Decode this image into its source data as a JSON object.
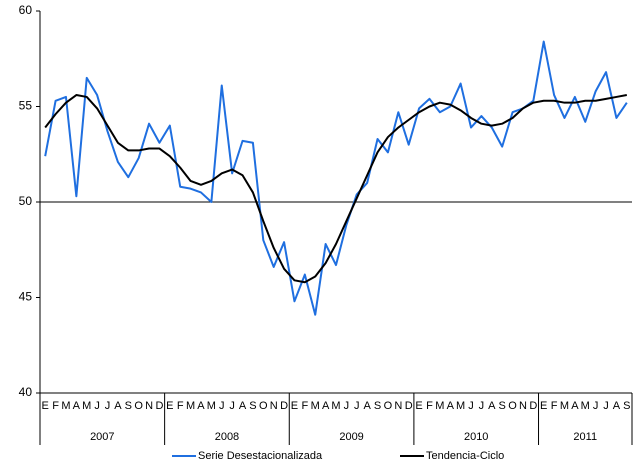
{
  "chart_data": {
    "type": "line",
    "categories": [
      "E",
      "F",
      "M",
      "A",
      "M",
      "J",
      "J",
      "A",
      "S",
      "O",
      "N",
      "D",
      "E",
      "F",
      "M",
      "A",
      "M",
      "J",
      "J",
      "A",
      "S",
      "O",
      "N",
      "D",
      "E",
      "F",
      "M",
      "A",
      "M",
      "J",
      "J",
      "A",
      "S",
      "O",
      "N",
      "D",
      "E",
      "F",
      "M",
      "A",
      "M",
      "J",
      "J",
      "A",
      "S",
      "O",
      "N",
      "D",
      "E",
      "F",
      "M",
      "A",
      "M",
      "J",
      "J",
      "A",
      "S"
    ],
    "year_groups": [
      "2007",
      "2008",
      "2009",
      "2010",
      "2011"
    ],
    "series": [
      {
        "name": "Serie Desestacionalizada",
        "color": "#1f6fe0",
        "values": [
          52.4,
          55.3,
          55.5,
          50.3,
          56.5,
          55.6,
          53.7,
          52.1,
          51.3,
          52.3,
          54.1,
          53.1,
          54.0,
          50.8,
          50.7,
          50.5,
          50.0,
          56.1,
          51.5,
          53.2,
          53.1,
          48.0,
          46.6,
          47.9,
          44.8,
          46.2,
          44.1,
          47.8,
          46.7,
          48.8,
          50.4,
          51.0,
          53.3,
          52.6,
          54.7,
          53.0,
          54.9,
          55.4,
          54.7,
          55.0,
          56.2,
          53.9,
          54.5,
          53.9,
          52.9,
          54.7,
          54.9,
          55.3,
          58.4,
          55.6,
          54.4,
          55.5,
          54.2,
          55.8,
          56.8,
          54.4,
          55.2
        ]
      },
      {
        "name": "Tendencia-Ciclo",
        "color": "#000000",
        "values": [
          53.9,
          54.6,
          55.2,
          55.6,
          55.5,
          54.9,
          54.0,
          53.1,
          52.7,
          52.7,
          52.8,
          52.8,
          52.4,
          51.8,
          51.1,
          50.9,
          51.1,
          51.5,
          51.7,
          51.4,
          50.5,
          49.0,
          47.6,
          46.5,
          45.9,
          45.8,
          46.1,
          46.8,
          47.8,
          49.0,
          50.2,
          51.4,
          52.6,
          53.4,
          53.9,
          54.3,
          54.7,
          55.0,
          55.2,
          55.1,
          54.8,
          54.4,
          54.1,
          54.0,
          54.1,
          54.4,
          54.9,
          55.2,
          55.3,
          55.3,
          55.2,
          55.2,
          55.3,
          55.3,
          55.4,
          55.5,
          55.6
        ]
      }
    ],
    "ylim": [
      40,
      60
    ],
    "yticks": [
      40,
      45,
      50,
      55,
      60
    ],
    "reference_line": 50,
    "legend": "bottom"
  }
}
